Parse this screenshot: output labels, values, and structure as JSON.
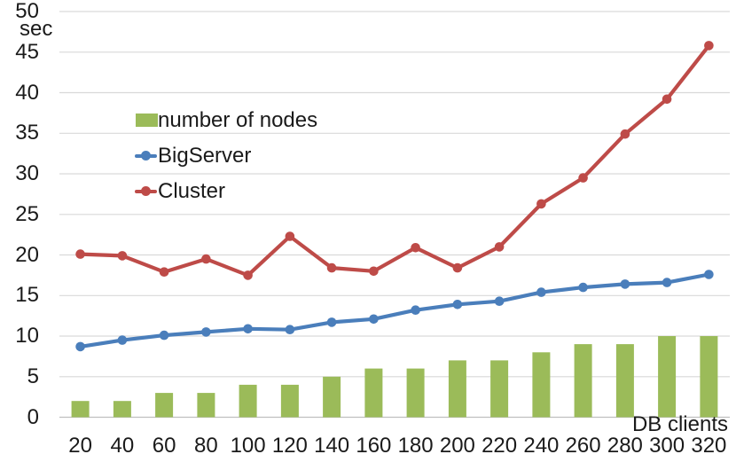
{
  "chart_data": {
    "type": "bar+line",
    "ylabel": "sec",
    "xlabel": "DB clients",
    "x": [
      20,
      40,
      60,
      80,
      100,
      120,
      140,
      160,
      180,
      200,
      220,
      240,
      260,
      280,
      300,
      320
    ],
    "series": [
      {
        "name": "number of nodes",
        "type": "bar",
        "color": "#9bbb59",
        "values": [
          2,
          2,
          3,
          3,
          4,
          4,
          5,
          6,
          6,
          7,
          7,
          8,
          9,
          9,
          10,
          10
        ]
      },
      {
        "name": "BigServer",
        "type": "line",
        "color": "#4a7ebb",
        "values": [
          8.7,
          9.5,
          10.1,
          10.5,
          10.9,
          10.8,
          11.7,
          12.1,
          13.2,
          13.9,
          14.3,
          15.4,
          16.0,
          16.4,
          16.6,
          17.6
        ]
      },
      {
        "name": "Cluster",
        "type": "line",
        "color": "#be4b48",
        "values": [
          20.1,
          19.9,
          17.9,
          19.5,
          17.5,
          22.3,
          18.4,
          18.0,
          20.9,
          18.4,
          21.0,
          26.3,
          29.5,
          34.9,
          39.2,
          45.8
        ]
      }
    ],
    "ylim": [
      0,
      50
    ],
    "yticks": [
      0,
      5,
      10,
      15,
      20,
      25,
      30,
      35,
      40,
      45,
      50
    ],
    "grid": true,
    "grid_color": "#d9d9d9",
    "axis_color": "#bfbfbf",
    "text_color": "#1a1a1a",
    "legend_position": "upper-left-inside"
  }
}
